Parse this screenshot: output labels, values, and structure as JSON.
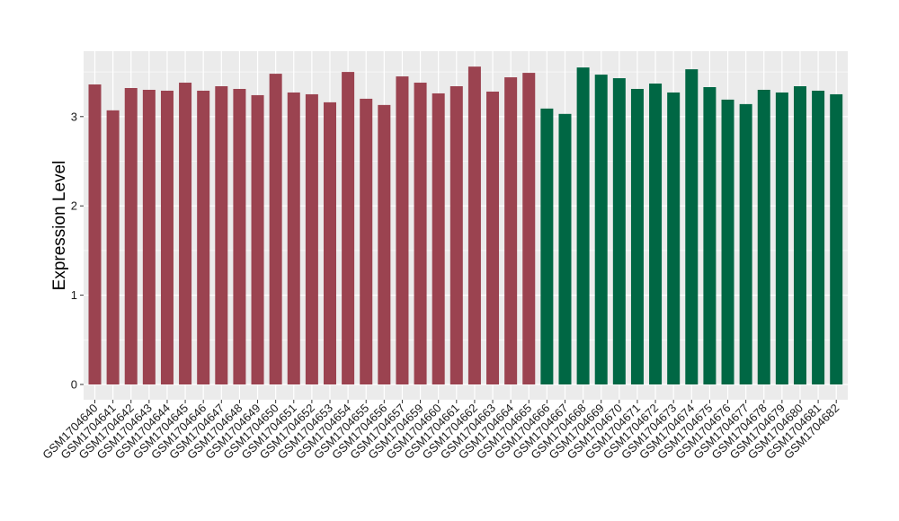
{
  "chart_data": {
    "type": "bar",
    "title": "",
    "xlabel": "",
    "ylabel": "Expression Level",
    "ylim": [
      0,
      3.6
    ],
    "yticks": [
      0,
      1,
      2,
      3
    ],
    "grid": true,
    "legend": "none",
    "colors": {
      "group_a": "#9b4350",
      "group_b": "#006744",
      "panel": "#ebebeb",
      "grid": "#ffffff"
    },
    "categories": [
      "GSM1704640",
      "GSM1704641",
      "GSM1704642",
      "GSM1704643",
      "GSM1704644",
      "GSM1704645",
      "GSM1704646",
      "GSM1704647",
      "GSM1704648",
      "GSM1704649",
      "GSM1704650",
      "GSM1704651",
      "GSM1704652",
      "GSM1704653",
      "GSM1704654",
      "GSM1704655",
      "GSM1704656",
      "GSM1704657",
      "GSM1704659",
      "GSM1704660",
      "GSM1704661",
      "GSM1704662",
      "GSM1704663",
      "GSM1704664",
      "GSM1704665",
      "GSM1704666",
      "GSM1704667",
      "GSM1704668",
      "GSM1704669",
      "GSM1704670",
      "GSM1704671",
      "GSM1704672",
      "GSM1704673",
      "GSM1704674",
      "GSM1704675",
      "GSM1704676",
      "GSM1704677",
      "GSM1704678",
      "GSM1704679",
      "GSM1704680",
      "GSM1704681",
      "GSM1704682"
    ],
    "values": [
      3.36,
      3.07,
      3.32,
      3.3,
      3.29,
      3.38,
      3.29,
      3.34,
      3.31,
      3.24,
      3.48,
      3.27,
      3.25,
      3.16,
      3.5,
      3.2,
      3.13,
      3.45,
      3.38,
      3.26,
      3.34,
      3.56,
      3.28,
      3.44,
      3.49,
      3.09,
      3.03,
      3.55,
      3.47,
      3.43,
      3.31,
      3.37,
      3.27,
      3.53,
      3.33,
      3.19,
      3.14,
      3.3,
      3.27,
      3.34,
      3.29,
      3.25
    ],
    "groups": [
      "a",
      "a",
      "a",
      "a",
      "a",
      "a",
      "a",
      "a",
      "a",
      "a",
      "a",
      "a",
      "a",
      "a",
      "a",
      "a",
      "a",
      "a",
      "a",
      "a",
      "a",
      "a",
      "a",
      "a",
      "a",
      "b",
      "b",
      "b",
      "b",
      "b",
      "b",
      "b",
      "b",
      "b",
      "b",
      "b",
      "b",
      "b",
      "b",
      "b",
      "b",
      "b"
    ]
  }
}
